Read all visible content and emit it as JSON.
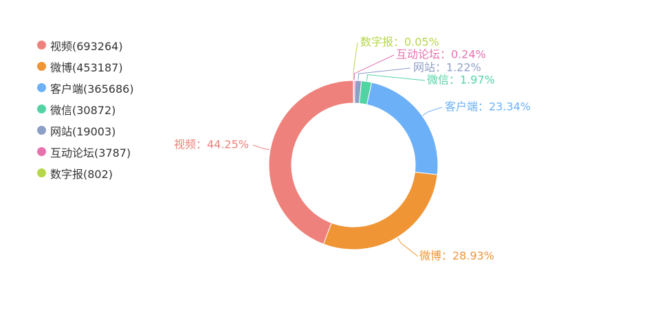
{
  "chart_data": {
    "type": "pie",
    "variant": "donut",
    "title": "",
    "legend_position": "top-left",
    "slices": [
      {
        "name": "视频",
        "value": 693264,
        "percent_label": "44.25%",
        "color": "#ee817b"
      },
      {
        "name": "微博",
        "value": 453187,
        "percent_label": "28.93%",
        "color": "#ef9535"
      },
      {
        "name": "客户端",
        "value": 365686,
        "percent_label": "23.34%",
        "color": "#6cb0f7"
      },
      {
        "name": "微信",
        "value": 30872,
        "percent_label": "1.97%",
        "color": "#52d3a3"
      },
      {
        "name": "网站",
        "value": 19003,
        "percent_label": "1.22%",
        "color": "#8d9ec7"
      },
      {
        "name": "互动论坛",
        "value": 3787,
        "percent_label": "0.24%",
        "color": "#e872b0"
      },
      {
        "name": "数字报",
        "value": 802,
        "percent_label": "0.05%",
        "color": "#b6d74a"
      }
    ]
  }
}
